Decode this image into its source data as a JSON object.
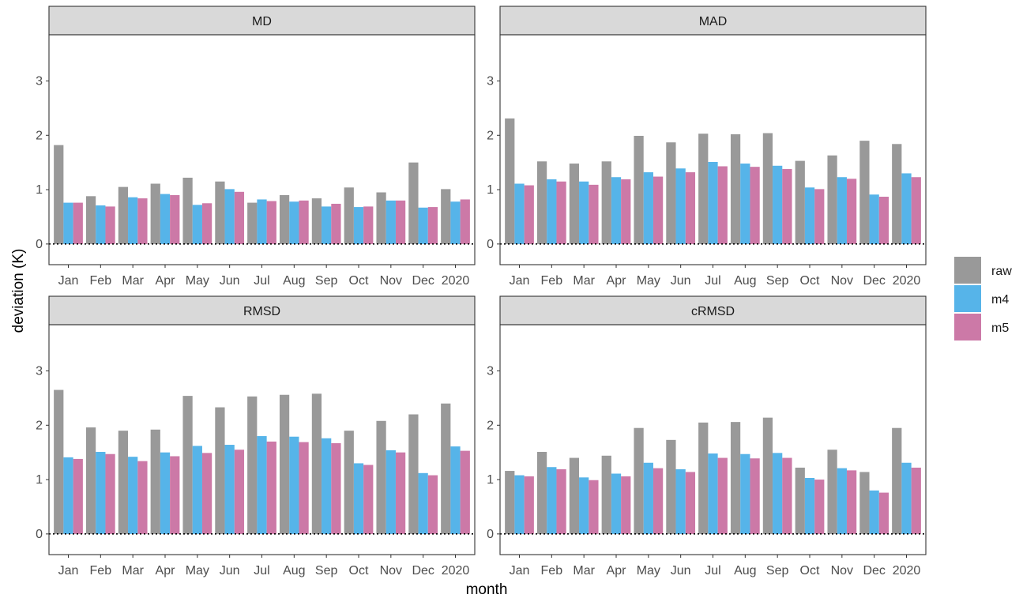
{
  "chart_data": {
    "type": "bar",
    "xlabel": "month",
    "ylabel": "deviation (K)",
    "categories": [
      "Jan",
      "Feb",
      "Mar",
      "Apr",
      "May",
      "Jun",
      "Jul",
      "Aug",
      "Sep",
      "Oct",
      "Nov",
      "Dec",
      "2020"
    ],
    "ylim": [
      -0.38,
      3.85
    ],
    "yticks": [
      0,
      1,
      2,
      3
    ],
    "grid": false,
    "reference_line": 0,
    "legend_position": "right",
    "series_order": [
      "raw",
      "m4",
      "m5"
    ],
    "colors": {
      "raw": "#999999",
      "m4": "#56B4E9",
      "m5": "#CC79A7"
    },
    "facets": [
      {
        "title": "MD",
        "series": [
          {
            "name": "raw",
            "values": [
              1.82,
              0.88,
              1.05,
              1.11,
              1.22,
              1.15,
              0.76,
              0.9,
              0.84,
              1.04,
              0.95,
              1.5,
              1.01
            ]
          },
          {
            "name": "m4",
            "values": [
              0.76,
              0.71,
              0.86,
              0.92,
              0.72,
              1.01,
              0.82,
              0.78,
              0.69,
              0.68,
              0.8,
              0.67,
              0.78
            ]
          },
          {
            "name": "m5",
            "values": [
              0.76,
              0.69,
              0.84,
              0.9,
              0.75,
              0.96,
              0.79,
              0.8,
              0.74,
              0.69,
              0.8,
              0.68,
              0.82
            ]
          }
        ]
      },
      {
        "title": "MAD",
        "series": [
          {
            "name": "raw",
            "values": [
              2.31,
              1.52,
              1.48,
              1.52,
              1.99,
              1.87,
              2.03,
              2.02,
              2.04,
              1.53,
              1.63,
              1.9,
              1.84
            ]
          },
          {
            "name": "m4",
            "values": [
              1.11,
              1.19,
              1.15,
              1.23,
              1.32,
              1.39,
              1.51,
              1.48,
              1.44,
              1.04,
              1.23,
              0.91,
              1.3
            ]
          },
          {
            "name": "m5",
            "values": [
              1.08,
              1.15,
              1.09,
              1.19,
              1.24,
              1.32,
              1.43,
              1.42,
              1.38,
              1.01,
              1.2,
              0.87,
              1.23
            ]
          }
        ]
      },
      {
        "title": "RMSD",
        "series": [
          {
            "name": "raw",
            "values": [
              2.65,
              1.96,
              1.9,
              1.92,
              2.54,
              2.33,
              2.53,
              2.56,
              2.58,
              1.9,
              2.08,
              2.2,
              2.4
            ]
          },
          {
            "name": "m4",
            "values": [
              1.41,
              1.51,
              1.42,
              1.5,
              1.62,
              1.64,
              1.8,
              1.79,
              1.76,
              1.3,
              1.54,
              1.12,
              1.61
            ]
          },
          {
            "name": "m5",
            "values": [
              1.38,
              1.47,
              1.34,
              1.43,
              1.49,
              1.55,
              1.7,
              1.69,
              1.67,
              1.27,
              1.5,
              1.08,
              1.53
            ]
          }
        ]
      },
      {
        "title": "cRMSD",
        "series": [
          {
            "name": "raw",
            "values": [
              1.16,
              1.51,
              1.4,
              1.44,
              1.95,
              1.73,
              2.05,
              2.06,
              2.14,
              1.22,
              1.55,
              1.14,
              1.95
            ]
          },
          {
            "name": "m4",
            "values": [
              1.08,
              1.23,
              1.04,
              1.11,
              1.31,
              1.19,
              1.48,
              1.47,
              1.49,
              1.03,
              1.21,
              0.8,
              1.31
            ]
          },
          {
            "name": "m5",
            "values": [
              1.06,
              1.19,
              0.99,
              1.06,
              1.21,
              1.14,
              1.4,
              1.39,
              1.4,
              1.0,
              1.17,
              0.76,
              1.22
            ]
          }
        ]
      }
    ]
  }
}
